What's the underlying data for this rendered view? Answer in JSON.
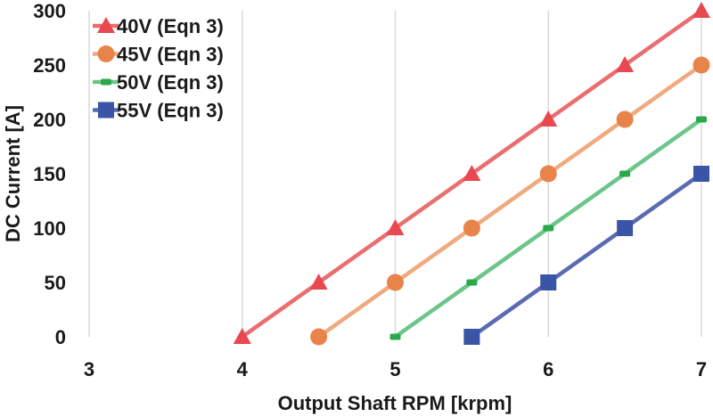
{
  "chart_data": {
    "type": "line",
    "title": "",
    "xlabel": "Output Shaft RPM [krpm]",
    "ylabel": "DC Current [A]",
    "xlim": [
      3,
      7
    ],
    "ylim": [
      0,
      300
    ],
    "x_ticks": [
      3,
      4,
      5,
      6,
      7
    ],
    "y_ticks": [
      0,
      50,
      100,
      150,
      200,
      250,
      300
    ],
    "grid": "vertical",
    "legend_position": "top-left",
    "series": [
      {
        "name": "40V (Eqn 3)",
        "color": "#e8484f",
        "line_color": "#ea6e70",
        "marker": "triangle",
        "x": [
          4,
          4.5,
          5,
          5.5,
          6,
          6.5,
          7
        ],
        "y": [
          0,
          50,
          100,
          150,
          200,
          250,
          300
        ]
      },
      {
        "name": "45V (Eqn 3)",
        "color": "#e8834a",
        "line_color": "#f0aa7e",
        "marker": "circle",
        "x": [
          4.5,
          5,
          5.5,
          6,
          6.5,
          7
        ],
        "y": [
          0,
          50,
          100,
          150,
          200,
          250
        ]
      },
      {
        "name": "50V (Eqn 3)",
        "color": "#2aa84a",
        "line_color": "#6cc68a",
        "marker": "dash",
        "x": [
          5,
          5.5,
          6,
          6.5,
          7
        ],
        "y": [
          0,
          50,
          100,
          150,
          200
        ]
      },
      {
        "name": "55V (Eqn 3)",
        "color": "#3a55a6",
        "line_color": "#5a6bb0",
        "marker": "square",
        "x": [
          5.5,
          6,
          6.5,
          7
        ],
        "y": [
          0,
          50,
          100,
          150
        ]
      }
    ]
  }
}
